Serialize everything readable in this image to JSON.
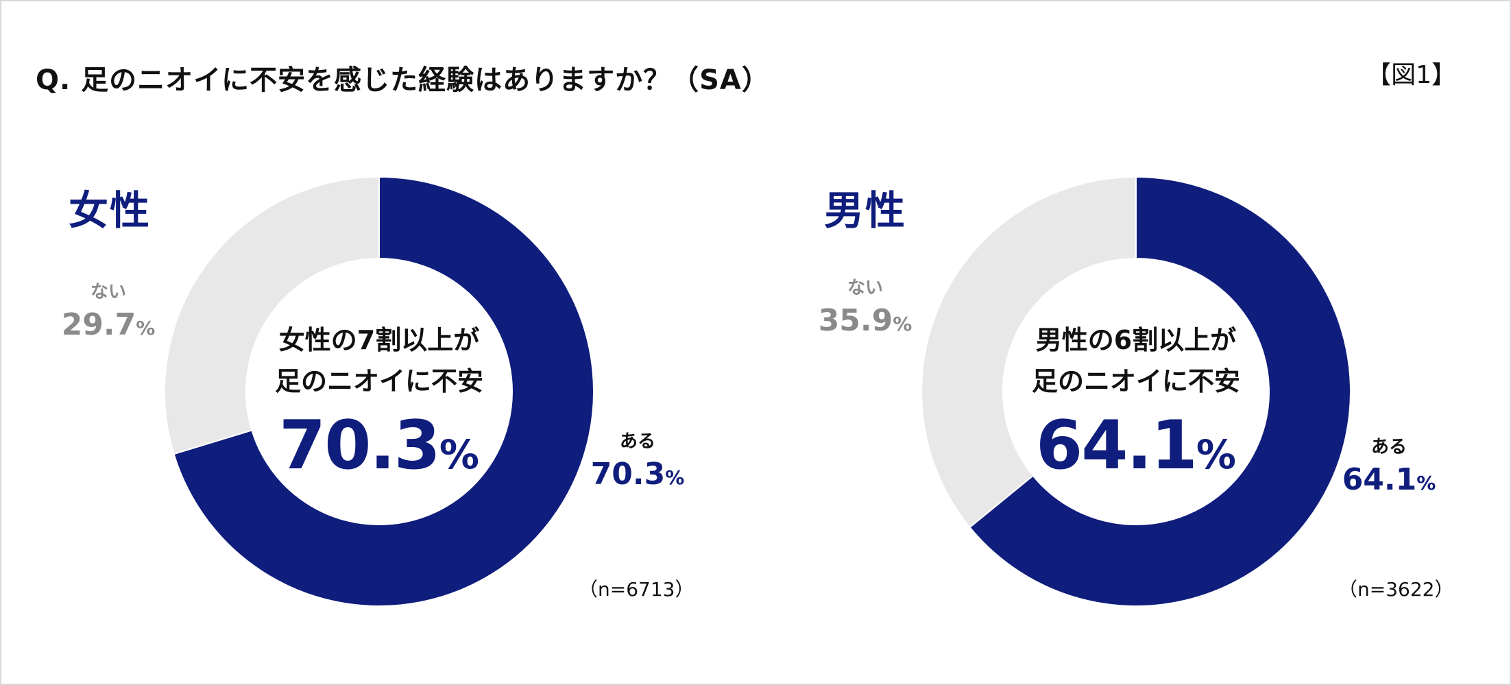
{
  "question": "Q. 足のニオイに不安を感じた経験はありますか？（SA）",
  "figure_label": "【図1】",
  "colors": {
    "yes": "#0f1d7c",
    "no": "#e8e8e8",
    "no_text": "#8a8a8a"
  },
  "chart_data": [
    {
      "type": "pie",
      "title": "女性",
      "categories": [
        "ある",
        "ない"
      ],
      "values": [
        70.3,
        29.7
      ],
      "unit": "%",
      "center_text_1": "女性の7割以上が",
      "center_text_2": "足のニオイに不安",
      "center_value": "70.3",
      "center_unit": "%",
      "slice_labels": {
        "yes_name": "ある",
        "yes_value": "70.3",
        "no_name": "ない",
        "no_value": "29.7",
        "unit": "%"
      },
      "n_label": "（n=6713）"
    },
    {
      "type": "pie",
      "title": "男性",
      "categories": [
        "ある",
        "ない"
      ],
      "values": [
        64.1,
        35.9
      ],
      "unit": "%",
      "center_text_1": "男性の6割以上が",
      "center_text_2": "足のニオイに不安",
      "center_value": "64.1",
      "center_unit": "%",
      "slice_labels": {
        "yes_name": "ある",
        "yes_value": "64.1",
        "no_name": "ない",
        "no_value": "35.9",
        "unit": "%"
      },
      "n_label": "（n=3622）"
    }
  ]
}
